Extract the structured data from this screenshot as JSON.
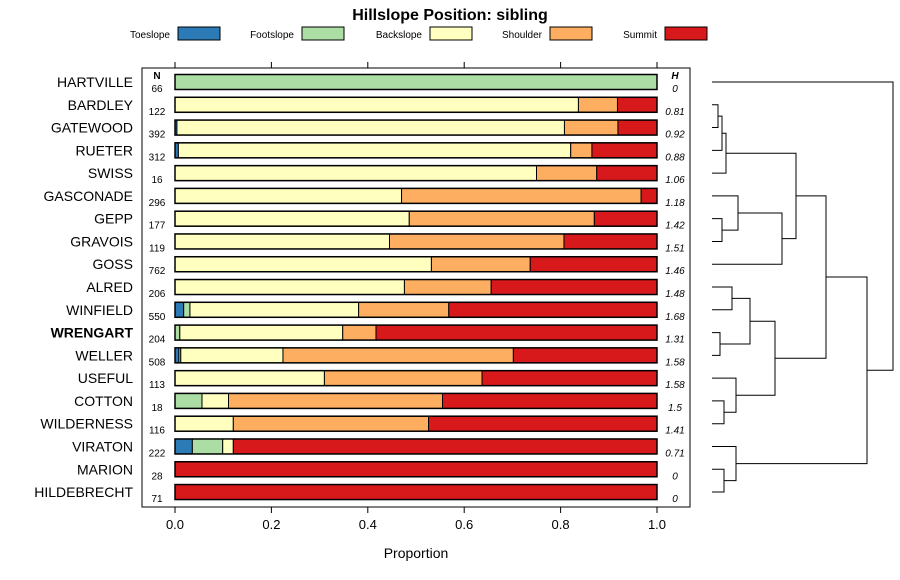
{
  "chart_data": {
    "type": "stacked-bar",
    "title": "Hillslope Position: sibling",
    "xlabel": "Proportion",
    "xlim": [
      0,
      1
    ],
    "xticks": [
      "0.0",
      "0.2",
      "0.4",
      "0.6",
      "0.8",
      "1.0"
    ],
    "n_header": "N",
    "h_header": "H",
    "highlight": "WRENGART",
    "legend": [
      {
        "name": "Toeslope",
        "color": "#2c7bb6"
      },
      {
        "name": "Footslope",
        "color": "#abdda4"
      },
      {
        "name": "Backslope",
        "color": "#ffffbf"
      },
      {
        "name": "Shoulder",
        "color": "#fdae61"
      },
      {
        "name": "Summit",
        "color": "#d7191c"
      }
    ],
    "rows": [
      {
        "name": "HARTVILLE",
        "n": "66",
        "h": "0",
        "values": [
          0,
          1,
          0,
          0,
          0
        ]
      },
      {
        "name": "BARDLEY",
        "n": "122",
        "h": "0.81",
        "values": [
          0,
          0,
          0.837,
          0.081,
          0.082
        ]
      },
      {
        "name": "GATEWOOD",
        "n": "392",
        "h": "0.92",
        "values": [
          0.004,
          0,
          0.804,
          0.111,
          0.081
        ]
      },
      {
        "name": "RUETER",
        "n": "312",
        "h": "0.88",
        "values": [
          0.007,
          0,
          0.814,
          0.044,
          0.135
        ]
      },
      {
        "name": "SWISS",
        "n": "16",
        "h": "1.06",
        "values": [
          0,
          0,
          0.75,
          0.125,
          0.125
        ]
      },
      {
        "name": "GASCONADE",
        "n": "296",
        "h": "1.18",
        "values": [
          0,
          0,
          0.47,
          0.497,
          0.033
        ]
      },
      {
        "name": "GEPP",
        "n": "177",
        "h": "1.42",
        "values": [
          0,
          0,
          0.486,
          0.384,
          0.13
        ]
      },
      {
        "name": "GRAVOIS",
        "n": "119",
        "h": "1.51",
        "values": [
          0,
          0,
          0.445,
          0.362,
          0.193
        ]
      },
      {
        "name": "GOSS",
        "n": "762",
        "h": "1.46",
        "values": [
          0,
          0,
          0.532,
          0.205,
          0.263
        ]
      },
      {
        "name": "ALRED",
        "n": "206",
        "h": "1.48",
        "values": [
          0,
          0,
          0.476,
          0.18,
          0.344
        ]
      },
      {
        "name": "WINFIELD",
        "n": "550",
        "h": "1.68",
        "values": [
          0.018,
          0.013,
          0.35,
          0.187,
          0.432
        ]
      },
      {
        "name": "WRENGART",
        "n": "204",
        "h": "1.31",
        "values": [
          0,
          0.01,
          0.338,
          0.069,
          0.583
        ]
      },
      {
        "name": "WELLER",
        "n": "508",
        "h": "1.58",
        "values": [
          0.008,
          0.004,
          0.212,
          0.478,
          0.298
        ]
      },
      {
        "name": "USEFUL",
        "n": "113",
        "h": "1.58",
        "values": [
          0,
          0,
          0.31,
          0.327,
          0.363
        ]
      },
      {
        "name": "COTTON",
        "n": "18",
        "h": "1.5",
        "values": [
          0,
          0.056,
          0.055,
          0.444,
          0.445
        ]
      },
      {
        "name": "WILDERNESS",
        "n": "116",
        "h": "1.41",
        "values": [
          0,
          0,
          0.121,
          0.405,
          0.474
        ]
      },
      {
        "name": "VIRATON",
        "n": "222",
        "h": "0.71",
        "values": [
          0.036,
          0.063,
          0.022,
          0,
          0.879
        ]
      },
      {
        "name": "MARION",
        "n": "28",
        "h": "0",
        "values": [
          0,
          0,
          0,
          0,
          1
        ]
      },
      {
        "name": "HILDEBRECHT",
        "n": "71",
        "h": "0",
        "values": [
          0,
          0,
          0,
          0,
          1
        ]
      }
    ]
  }
}
